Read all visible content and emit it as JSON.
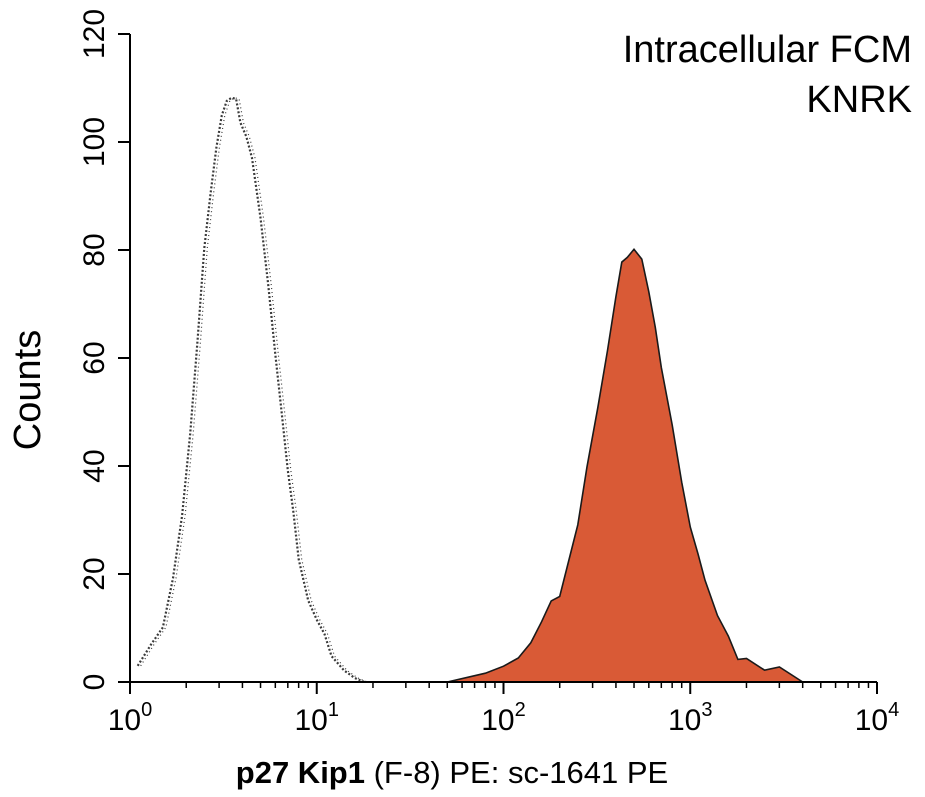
{
  "chart_data": {
    "type": "area",
    "x_scale": "log",
    "xlim": [
      1,
      10000
    ],
    "ylim": [
      0,
      120
    ],
    "grid": false,
    "x_ticks": [
      {
        "base": "10",
        "exp": "0",
        "value": 1
      },
      {
        "base": "10",
        "exp": "1",
        "value": 10
      },
      {
        "base": "10",
        "exp": "2",
        "value": 100
      },
      {
        "base": "10",
        "exp": "3",
        "value": 1000
      },
      {
        "base": "10",
        "exp": "4",
        "value": 10000
      }
    ],
    "y_ticks": [
      "0",
      "20",
      "40",
      "60",
      "80",
      "100",
      "120"
    ],
    "ylabel": "Counts",
    "xlabel_bold": "p27 Kip1",
    "xlabel_rest": " (F-8) PE: sc-1641 PE",
    "annotations": [
      "Intracellular FCM",
      "KNRK"
    ],
    "series": [
      {
        "style": "dotted-outline",
        "color": "#3a3a3a",
        "x": [
          1.1,
          1.3,
          1.5,
          1.7,
          1.9,
          2.1,
          2.3,
          2.5,
          2.7,
          2.9,
          3.1,
          3.3,
          3.5,
          3.7,
          3.9,
          4.2,
          4.5,
          5.0,
          5.5,
          6.0,
          6.5,
          7.0,
          7.5,
          8.0,
          9.0,
          10.0,
          11.0,
          12.0,
          14.0,
          16.0,
          18.0
        ],
        "y": [
          3,
          5,
          10,
          18,
          30,
          45,
          62,
          80,
          92,
          100,
          105,
          108,
          110,
          108,
          104,
          100,
          95,
          85,
          72,
          60,
          48,
          38,
          30,
          24,
          17,
          13,
          10,
          7,
          4,
          2,
          0
        ]
      },
      {
        "style": "filled",
        "color": "#d95a36",
        "x": [
          50,
          80,
          100,
          120,
          140,
          160,
          180,
          200,
          220,
          250,
          280,
          320,
          360,
          400,
          430,
          460,
          500,
          550,
          600,
          650,
          700,
          800,
          900,
          1000,
          1100,
          1200,
          1400,
          1600,
          1800,
          2000,
          2500,
          3000,
          4000
        ],
        "y": [
          0,
          1,
          2,
          4,
          6,
          9,
          13,
          17,
          22,
          30,
          40,
          52,
          63,
          72,
          76,
          78,
          79,
          78,
          72,
          65,
          58,
          48,
          38,
          30,
          24,
          20,
          14,
          10,
          6,
          4,
          2,
          1,
          0
        ]
      }
    ]
  }
}
